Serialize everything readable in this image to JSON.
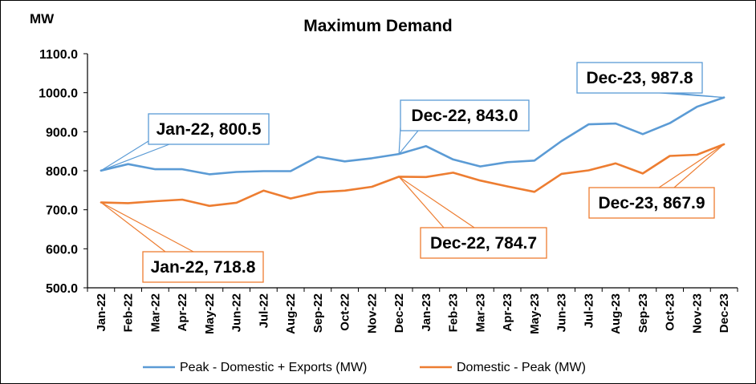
{
  "chart_data": {
    "type": "line",
    "title": "Maximum Demand",
    "ylabel": "MW",
    "ylim": [
      500,
      1100
    ],
    "yticks": [
      "500.0",
      "600.0",
      "700.0",
      "800.0",
      "900.0",
      "1000.0",
      "1100.0"
    ],
    "grid": false,
    "legend_position": "bottom",
    "categories": [
      "Jan-22",
      "Feb-22",
      "Mar-22",
      "Apr-22",
      "May-22",
      "Jun-22",
      "Jul-22",
      "Aug-22",
      "Sep-22",
      "Oct-22",
      "Nov-22",
      "Dec-22",
      "Jan-23",
      "Feb-23",
      "Mar-23",
      "Apr-23",
      "May-23",
      "Jun-23",
      "Jul-23",
      "Aug-23",
      "Sep-23",
      "Oct-23",
      "Nov-23",
      "Dec-23"
    ],
    "series": [
      {
        "name": "Peak - Domestic + Exports (MW)",
        "color": "#5B9BD5",
        "values": [
          800.5,
          817,
          804,
          804,
          791,
          797,
          799,
          799,
          836,
          824,
          832,
          843.0,
          863,
          829,
          811,
          822,
          826,
          876,
          919,
          921,
          894,
          922,
          964,
          987.8
        ]
      },
      {
        "name": "Domestic - Peak (MW)",
        "color": "#ED7D31",
        "values": [
          718.8,
          717,
          722,
          726,
          710,
          718,
          749,
          729,
          745,
          749,
          759,
          784.7,
          784,
          795,
          775,
          760,
          746,
          792,
          801,
          819,
          793,
          838,
          841,
          867.9
        ]
      }
    ],
    "annotations": [
      {
        "text": "Jan-22, 800.5",
        "series": 0,
        "index": 0
      },
      {
        "text": "Dec-22, 843.0",
        "series": 0,
        "index": 11
      },
      {
        "text": "Dec-23, 987.8",
        "series": 0,
        "index": 23
      },
      {
        "text": "Jan-22, 718.8",
        "series": 1,
        "index": 0
      },
      {
        "text": "Dec-22, 784.7",
        "series": 1,
        "index": 11
      },
      {
        "text": "Dec-23, 867.9",
        "series": 1,
        "index": 23
      }
    ]
  }
}
